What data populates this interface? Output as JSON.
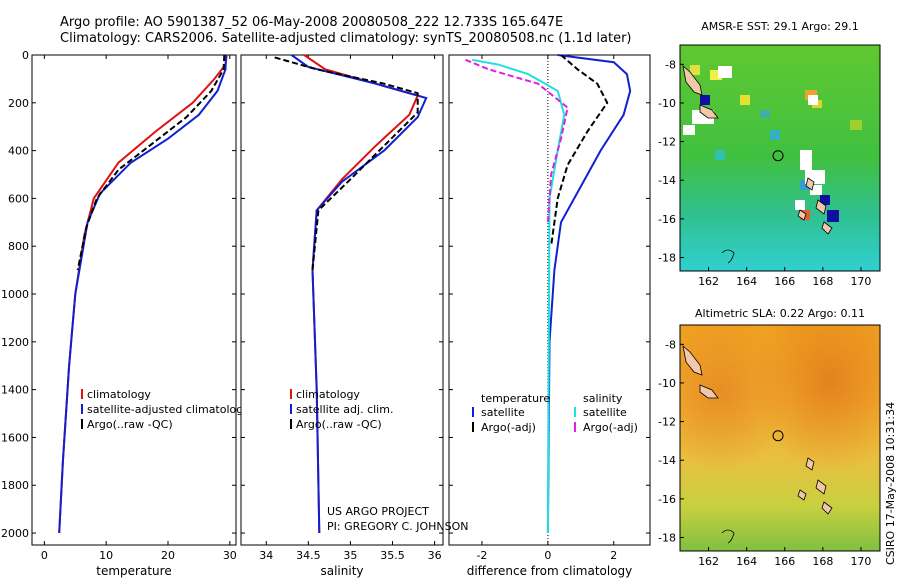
{
  "header": {
    "line1": "Argo profile: AO 5901387_52 06-May-2008 20080508_222 12.733S 165.647E",
    "line2": "Climatology: CARS2006. Satellite-adjusted climatology: synTS_20080508.nc (1.1d later)"
  },
  "credit": {
    "project": "US ARGO PROJECT",
    "pi": "PI: GREGORY C. JOHNSON"
  },
  "timestamp": "CSIRO 17-May-2008 10:31:34",
  "colors": {
    "climatology": "#e01010",
    "satellite": "#1020d0",
    "argo": "#000000",
    "satellite_salinity_diff": "#20e0e0",
    "argo_salinity_diff": "#e020e0"
  },
  "chart_data": [
    {
      "type": "line",
      "name": "temperature",
      "xlabel": "temperature",
      "ylabel": "",
      "xlim": [
        -2,
        31
      ],
      "ylim": [
        2050,
        0
      ],
      "xticks": [
        0,
        10,
        20,
        30
      ],
      "yticks": [
        0,
        200,
        400,
        600,
        800,
        1000,
        1200,
        1400,
        1600,
        1800,
        2000
      ],
      "x_show_y_labels": true,
      "legend": {
        "position": "lower-center",
        "entries": [
          "climatology",
          "satellite-adjusted climatology",
          "Argo(..raw -QC)"
        ]
      },
      "series": [
        {
          "name": "climatology",
          "color": "#e01010",
          "style": "solid",
          "points": [
            [
              29.5,
              0
            ],
            [
              29.3,
              40
            ],
            [
              27.5,
              100
            ],
            [
              24,
              200
            ],
            [
              18,
              320
            ],
            [
              12,
              450
            ],
            [
              8,
              600
            ],
            [
              6.5,
              750
            ],
            [
              5,
              1000
            ],
            [
              4,
              1300
            ],
            [
              3,
              1700
            ],
            [
              2.4,
              2000
            ]
          ]
        },
        {
          "name": "satellite-adjusted climatology",
          "color": "#1020d0",
          "style": "solid",
          "points": [
            [
              29.4,
              0
            ],
            [
              29.3,
              60
            ],
            [
              28,
              150
            ],
            [
              25,
              250
            ],
            [
              20,
              350
            ],
            [
              14,
              450
            ],
            [
              9,
              580
            ],
            [
              7,
              700
            ],
            [
              5,
              1000
            ],
            [
              4,
              1300
            ],
            [
              3,
              1700
            ],
            [
              2.4,
              2000
            ]
          ]
        },
        {
          "name": "Argo(..raw -QC)",
          "color": "#000000",
          "style": "dashed",
          "points": [
            [
              29.1,
              0
            ],
            [
              29,
              60
            ],
            [
              27,
              150
            ],
            [
              23,
              260
            ],
            [
              17,
              380
            ],
            [
              12,
              480
            ],
            [
              8.5,
              600
            ],
            [
              6.8,
              720
            ],
            [
              5.4,
              900
            ]
          ]
        }
      ]
    },
    {
      "type": "line",
      "name": "salinity",
      "xlabel": "salinity",
      "ylabel": "",
      "xlim": [
        33.7,
        36.1
      ],
      "ylim": [
        2050,
        0
      ],
      "xticks": [
        34,
        34.5,
        35,
        35.5,
        36
      ],
      "legend": {
        "position": "lower-center",
        "entries": [
          "climatology",
          "satellite adj. clim.",
          "Argo(..raw -QC)"
        ]
      },
      "series": [
        {
          "name": "climatology",
          "color": "#e01010",
          "style": "solid",
          "points": [
            [
              34.45,
              0
            ],
            [
              34.7,
              60
            ],
            [
              35.3,
              120
            ],
            [
              35.8,
              170
            ],
            [
              35.7,
              250
            ],
            [
              35.3,
              380
            ],
            [
              34.9,
              520
            ],
            [
              34.6,
              650
            ],
            [
              34.55,
              900
            ],
            [
              34.6,
              1400
            ],
            [
              34.63,
              2000
            ]
          ]
        },
        {
          "name": "satellite adj. clim.",
          "color": "#1020d0",
          "style": "solid",
          "points": [
            [
              34.3,
              0
            ],
            [
              34.5,
              50
            ],
            [
              35.3,
              120
            ],
            [
              35.9,
              180
            ],
            [
              35.8,
              260
            ],
            [
              35.4,
              400
            ],
            [
              34.9,
              530
            ],
            [
              34.6,
              650
            ],
            [
              34.55,
              900
            ],
            [
              34.6,
              1400
            ],
            [
              34.63,
              2000
            ]
          ]
        },
        {
          "name": "Argo(..raw -QC)",
          "color": "#000000",
          "style": "dashed",
          "points": [
            [
              34.1,
              10
            ],
            [
              34.3,
              30
            ],
            [
              34.6,
              60
            ],
            [
              35.4,
              120
            ],
            [
              35.8,
              160
            ],
            [
              35.8,
              240
            ],
            [
              35.4,
              380
            ],
            [
              35.0,
              520
            ],
            [
              34.62,
              650
            ],
            [
              34.55,
              900
            ]
          ]
        }
      ]
    },
    {
      "type": "line",
      "name": "difference",
      "xlabel": "difference from climatology",
      "ylabel": "",
      "xlim": [
        -3,
        3.1
      ],
      "ylim": [
        2050,
        0
      ],
      "xticks": [
        -2,
        0,
        2
      ],
      "zero_line": true,
      "legend": {
        "position": "lower-center",
        "groups": [
          {
            "heading": "temperature",
            "entries": [
              "satellite",
              "Argo(-adj)"
            ]
          },
          {
            "heading": "salinity",
            "entries": [
              "satellite",
              "Argo(-adj)"
            ]
          }
        ]
      },
      "series": [
        {
          "name": "temperature satellite",
          "color": "#1020d0",
          "style": "solid",
          "points": [
            [
              0.3,
              0
            ],
            [
              2.0,
              30
            ],
            [
              2.4,
              80
            ],
            [
              2.5,
              150
            ],
            [
              2.3,
              250
            ],
            [
              1.6,
              400
            ],
            [
              1.0,
              550
            ],
            [
              0.4,
              700
            ],
            [
              0.2,
              900
            ],
            [
              0.05,
              1200
            ],
            [
              0,
              2000
            ]
          ]
        },
        {
          "name": "temperature Argo(-adj)",
          "color": "#000000",
          "style": "dashed",
          "points": [
            [
              0.4,
              0
            ],
            [
              0.9,
              60
            ],
            [
              1.5,
              120
            ],
            [
              1.8,
              200
            ],
            [
              1.2,
              320
            ],
            [
              0.6,
              460
            ],
            [
              0.3,
              600
            ],
            [
              0.1,
              800
            ]
          ]
        },
        {
          "name": "salinity satellite",
          "color": "#20e0e0",
          "style": "solid",
          "points": [
            [
              -2.3,
              20
            ],
            [
              -1.5,
              40
            ],
            [
              -0.6,
              80
            ],
            [
              0.3,
              150
            ],
            [
              0.5,
              250
            ],
            [
              0.3,
              400
            ],
            [
              0.05,
              600
            ],
            [
              0,
              2000
            ]
          ]
        },
        {
          "name": "salinity Argo(-adj)",
          "color": "#e020e0",
          "style": "dashed",
          "points": [
            [
              -2.5,
              20
            ],
            [
              -1.8,
              60
            ],
            [
              -0.3,
              120
            ],
            [
              0.6,
              220
            ],
            [
              0.4,
              350
            ],
            [
              0.1,
              500
            ],
            [
              0,
              700
            ]
          ]
        }
      ]
    },
    {
      "type": "heatmap",
      "name": "sst_map",
      "title": "AMSR-E SST: 29.1  Argo: 29.1",
      "xlim": [
        160.5,
        171
      ],
      "ylim": [
        -18.7,
        -7
      ],
      "xticks": [
        162,
        164,
        166,
        168,
        170
      ],
      "yticks": [
        -8,
        -10,
        -12,
        -14,
        -16,
        -18
      ],
      "marker": {
        "lon": 165.647,
        "lat": -12.733
      }
    },
    {
      "type": "heatmap",
      "name": "sla_map",
      "title": "Altimetric SLA: 0.22  Argo: 0.11",
      "xlim": [
        160.5,
        171
      ],
      "ylim": [
        -18.7,
        -7
      ],
      "xticks": [
        162,
        164,
        166,
        168,
        170
      ],
      "yticks": [
        -8,
        -10,
        -12,
        -14,
        -16,
        -18
      ],
      "marker": {
        "lon": 165.647,
        "lat": -12.733
      }
    }
  ]
}
